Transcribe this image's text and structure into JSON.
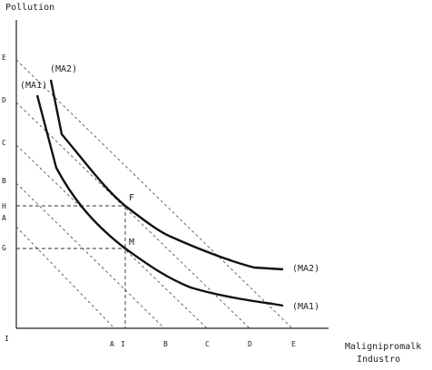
{
  "axes": {
    "y_label": "Pollution",
    "x_label_line1": "Malignipromalk",
    "x_label_line2": "Industro"
  },
  "y_ticks": [
    "E",
    "D",
    "C",
    "B",
    "H",
    "A",
    "G"
  ],
  "x_ticks": [
    "A",
    "I",
    "B",
    "C",
    "D",
    "E"
  ],
  "origin": "I",
  "curves": {
    "upper_top": "(MA2)",
    "lower_top": "(MA1)",
    "upper_end": "(MA2)",
    "lower_end": "(MA1)"
  },
  "points": {
    "upper": "F",
    "lower": "M"
  }
}
